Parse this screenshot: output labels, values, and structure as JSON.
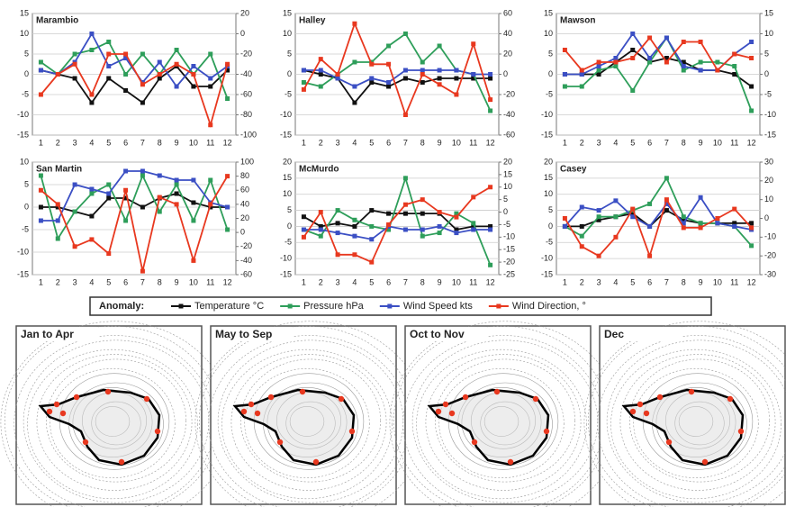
{
  "chart_data": [
    {
      "type": "line",
      "title": "Marambio",
      "categories": [
        "1",
        "2",
        "3",
        "4",
        "5",
        "6",
        "7",
        "8",
        "9",
        "10",
        "11",
        "12"
      ],
      "ylim": [
        -15,
        15
      ],
      "yticks": [
        -15,
        -10,
        -5,
        0,
        5,
        10,
        15
      ],
      "y2lim": [
        -100,
        20
      ],
      "y2ticks": [
        -100,
        -80,
        -60,
        -40,
        -20,
        0,
        20
      ],
      "grid": true,
      "series": [
        {
          "name": "Temperature °C",
          "color": "#111111",
          "values": [
            1,
            0,
            -1,
            -7,
            -1,
            -4,
            -7,
            -1,
            2,
            -3,
            -3,
            1
          ]
        },
        {
          "name": "Pressure hPa",
          "color": "#2e9e5a",
          "values": [
            3,
            0,
            5,
            6,
            8,
            0,
            5,
            0,
            6,
            0,
            5,
            -6
          ]
        },
        {
          "name": "Wind Speed kts",
          "color": "#3b4fc4",
          "values": [
            1,
            0,
            3,
            10,
            2,
            4,
            -2,
            3,
            -3,
            2,
            -1,
            2
          ]
        },
        {
          "name": "Wind Direction, °",
          "color": "#e8381f",
          "axis": "y2",
          "values": [
            -60,
            -40,
            -30,
            -60,
            -20,
            -20,
            -50,
            -40,
            -30,
            -40,
            -90,
            -30
          ]
        }
      ]
    },
    {
      "type": "line",
      "title": "Halley",
      "categories": [
        "1",
        "2",
        "3",
        "4",
        "5",
        "6",
        "7",
        "8",
        "9",
        "10",
        "11",
        "12"
      ],
      "ylim": [
        -15,
        15
      ],
      "yticks": [
        -15,
        -10,
        -5,
        0,
        5,
        10,
        15
      ],
      "y2lim": [
        -60,
        60
      ],
      "y2ticks": [
        -60,
        -40,
        -20,
        0,
        20,
        40,
        60
      ],
      "grid": true,
      "series": [
        {
          "color": "#111111",
          "values": [
            1,
            0,
            -1,
            -7,
            -2,
            -3,
            -1,
            -2,
            -1,
            -1,
            -1,
            -1
          ]
        },
        {
          "color": "#2e9e5a",
          "values": [
            -2,
            -3,
            0,
            3,
            3,
            7,
            10,
            3,
            7,
            1,
            0,
            -9
          ]
        },
        {
          "color": "#3b4fc4",
          "values": [
            1,
            1,
            -1,
            -3,
            -1,
            -2,
            1,
            1,
            1,
            1,
            0,
            0
          ]
        },
        {
          "color": "#e8381f",
          "axis": "y2",
          "values": [
            -15,
            15,
            0,
            50,
            10,
            10,
            -40,
            0,
            -10,
            -20,
            30,
            -25
          ]
        }
      ]
    },
    {
      "type": "line",
      "title": "Mawson",
      "categories": [
        "1",
        "2",
        "3",
        "4",
        "5",
        "6",
        "7",
        "8",
        "9",
        "10",
        "11",
        "12"
      ],
      "ylim": [
        -15,
        15
      ],
      "yticks": [
        -15,
        -10,
        -5,
        0,
        5,
        10,
        15
      ],
      "y2lim": [
        -15,
        15
      ],
      "y2ticks": [
        -15,
        -10,
        -5,
        0,
        5,
        10,
        15
      ],
      "grid": true,
      "series": [
        {
          "color": "#111111",
          "values": [
            0,
            0,
            0,
            3,
            6,
            3,
            4,
            3,
            1,
            1,
            0,
            -3
          ]
        },
        {
          "color": "#2e9e5a",
          "values": [
            -3,
            -3,
            1,
            2,
            -4,
            3,
            9,
            1,
            3,
            3,
            2,
            -9
          ]
        },
        {
          "color": "#3b4fc4",
          "values": [
            0,
            0,
            2,
            4,
            10,
            4,
            9,
            2,
            1,
            1,
            5,
            8
          ]
        },
        {
          "color": "#e8381f",
          "axis": "y2",
          "values": [
            6,
            1,
            3,
            3,
            4,
            9,
            3,
            8,
            8,
            1,
            5,
            4
          ]
        }
      ]
    },
    {
      "type": "line",
      "title": "San Martin",
      "categories": [
        "1",
        "2",
        "3",
        "4",
        "5",
        "6",
        "7",
        "8",
        "9",
        "10",
        "11",
        "12"
      ],
      "ylim": [
        -15,
        10
      ],
      "yticks": [
        -15,
        -10,
        -5,
        0,
        5,
        10
      ],
      "y2lim": [
        -60,
        100
      ],
      "y2ticks": [
        -60,
        -40,
        -20,
        0,
        20,
        40,
        60,
        80,
        100
      ],
      "grid": true,
      "series": [
        {
          "color": "#111111",
          "values": [
            0,
            0,
            -1,
            -2,
            2,
            2,
            0,
            2,
            3,
            1,
            0,
            0
          ]
        },
        {
          "color": "#2e9e5a",
          "values": [
            7,
            -7,
            -1,
            3,
            5,
            -3,
            7,
            -1,
            5,
            -3,
            6,
            -5
          ]
        },
        {
          "color": "#3b4fc4",
          "values": [
            -3,
            -3,
            5,
            4,
            3,
            8,
            8,
            7,
            6,
            6,
            1,
            0
          ]
        },
        {
          "color": "#e8381f",
          "axis": "y2",
          "values": [
            60,
            40,
            -20,
            -10,
            -30,
            60,
            -55,
            50,
            40,
            -40,
            40,
            80
          ]
        }
      ]
    },
    {
      "type": "line",
      "title": "McMurdo",
      "categories": [
        "1",
        "2",
        "3",
        "4",
        "5",
        "6",
        "7",
        "8",
        "9",
        "10",
        "11",
        "12"
      ],
      "ylim": [
        -15,
        20
      ],
      "yticks": [
        -15,
        -10,
        -5,
        0,
        5,
        10,
        15,
        20
      ],
      "y2lim": [
        -25,
        20
      ],
      "y2ticks": [
        -25,
        -20,
        -15,
        -10,
        -5,
        0,
        5,
        10,
        15,
        20
      ],
      "grid": true,
      "series": [
        {
          "color": "#111111",
          "values": [
            3,
            0,
            1,
            0,
            5,
            4,
            4,
            4,
            4,
            -1,
            0,
            0
          ]
        },
        {
          "color": "#2e9e5a",
          "values": [
            -1,
            -3,
            5,
            2,
            0,
            -1,
            15,
            -3,
            -2,
            4,
            1,
            -12
          ]
        },
        {
          "color": "#3b4fc4",
          "values": [
            -1,
            -1,
            -2,
            -3,
            -4,
            0,
            -1,
            -1,
            0,
            -2,
            -1,
            -1
          ]
        },
        {
          "color": "#e8381f",
          "axis": "y2",
          "values": [
            -10,
            0,
            -17,
            -17,
            -20,
            -5,
            3,
            5,
            0,
            -2,
            6,
            10
          ]
        }
      ]
    },
    {
      "type": "line",
      "title": "Casey",
      "categories": [
        "1",
        "2",
        "3",
        "4",
        "5",
        "6",
        "7",
        "8",
        "9",
        "10",
        "11",
        "12"
      ],
      "ylim": [
        -15,
        20
      ],
      "yticks": [
        -15,
        -10,
        -5,
        0,
        5,
        10,
        15,
        20
      ],
      "y2lim": [
        -30,
        30
      ],
      "y2ticks": [
        -30,
        -20,
        -10,
        0,
        10,
        20,
        30
      ],
      "grid": true,
      "series": [
        {
          "color": "#111111",
          "values": [
            0,
            0,
            2,
            3,
            4,
            0,
            5,
            2,
            1,
            1,
            1,
            1
          ]
        },
        {
          "color": "#2e9e5a",
          "values": [
            0,
            -3,
            3,
            3,
            5,
            7,
            15,
            3,
            1,
            1,
            0,
            -6
          ]
        },
        {
          "color": "#3b4fc4",
          "values": [
            0,
            6,
            5,
            8,
            3,
            0,
            7,
            1,
            9,
            1,
            0,
            -1
          ]
        },
        {
          "color": "#e8381f",
          "axis": "y2",
          "values": [
            0,
            -15,
            -20,
            -10,
            5,
            -20,
            10,
            -5,
            -5,
            0,
            5,
            -5
          ]
        }
      ]
    }
  ],
  "legend": {
    "title": "Anomaly:"
  },
  "maps": [
    {
      "label": "Jan to Apr"
    },
    {
      "label": "May to Sep"
    },
    {
      "label": "Oct to Nov"
    },
    {
      "label": "Dec"
    }
  ]
}
